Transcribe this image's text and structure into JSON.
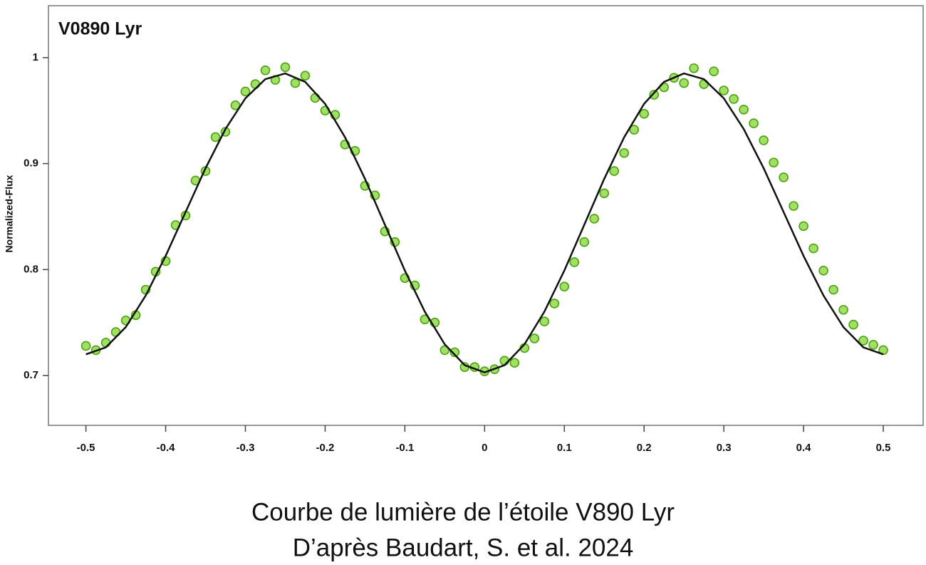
{
  "chart_data": {
    "type": "scatter",
    "title": "V0890 Lyr",
    "y_label": "Normalized-Flux",
    "caption": [
      "Courbe de lumière de l’étoile V890 Lyr",
      "D’après Baudart, S. et al. 2024"
    ],
    "xlim": [
      -0.547,
      0.55
    ],
    "ylim": [
      0.653,
      1.049
    ],
    "xticks": [
      -0.5,
      -0.4,
      -0.3,
      -0.2,
      -0.1,
      0,
      0.1,
      0.2,
      0.3,
      0.4,
      0.5
    ],
    "yticks": [
      0.7,
      0.8,
      0.9,
      1
    ],
    "series": [
      {
        "type": "scatter",
        "color": "#8fdc4a",
        "x": [
          -0.5,
          -0.4875,
          -0.475,
          -0.4625,
          -0.45,
          -0.4375,
          -0.425,
          -0.4125,
          -0.4,
          -0.3875,
          -0.375,
          -0.3625,
          -0.35,
          -0.3375,
          -0.325,
          -0.3125,
          -0.3,
          -0.2875,
          -0.275,
          -0.2625,
          -0.25,
          -0.2375,
          -0.225,
          -0.2125,
          -0.2,
          -0.1875,
          -0.175,
          -0.1625,
          -0.15,
          -0.1375,
          -0.125,
          -0.1125,
          -0.1,
          -0.0875,
          -0.075,
          -0.0625,
          -0.05,
          -0.0375,
          -0.025,
          -0.0125,
          0,
          0.0125,
          0.025,
          0.0375,
          0.05,
          0.0625,
          0.075,
          0.0875,
          0.1,
          0.1125,
          0.125,
          0.1375,
          0.15,
          0.1625,
          0.175,
          0.1875,
          0.2,
          0.2125,
          0.225,
          0.2375,
          0.25,
          0.2625,
          0.275,
          0.2875,
          0.3,
          0.3125,
          0.325,
          0.3375,
          0.35,
          0.3625,
          0.375,
          0.3875,
          0.4,
          0.4125,
          0.425,
          0.4375,
          0.45,
          0.4625,
          0.475,
          0.4875,
          0.5
        ],
        "values": [
          0.728,
          0.724,
          0.731,
          0.741,
          0.752,
          0.757,
          0.781,
          0.798,
          0.808,
          0.842,
          0.851,
          0.884,
          0.893,
          0.925,
          0.93,
          0.955,
          0.968,
          0.975,
          0.988,
          0.979,
          0.991,
          0.976,
          0.983,
          0.962,
          0.95,
          0.946,
          0.918,
          0.912,
          0.879,
          0.87,
          0.836,
          0.826,
          0.792,
          0.785,
          0.753,
          0.75,
          0.724,
          0.722,
          0.708,
          0.708,
          0.704,
          0.706,
          0.714,
          0.712,
          0.726,
          0.735,
          0.751,
          0.768,
          0.784,
          0.807,
          0.826,
          0.848,
          0.872,
          0.893,
          0.91,
          0.932,
          0.947,
          0.965,
          0.972,
          0.981,
          0.976,
          0.99,
          0.975,
          0.987,
          0.969,
          0.961,
          0.951,
          0.938,
          0.922,
          0.901,
          0.887,
          0.86,
          0.841,
          0.82,
          0.799,
          0.781,
          0.762,
          0.748,
          0.733,
          0.729,
          0.724
        ]
      },
      {
        "type": "line",
        "color": "#111111",
        "x": [
          -0.5,
          -0.475,
          -0.45,
          -0.425,
          -0.4,
          -0.375,
          -0.35,
          -0.325,
          -0.3,
          -0.275,
          -0.25,
          -0.225,
          -0.2,
          -0.175,
          -0.15,
          -0.125,
          -0.1,
          -0.075,
          -0.05,
          -0.025,
          0,
          0.025,
          0.05,
          0.075,
          0.1,
          0.125,
          0.15,
          0.175,
          0.2,
          0.225,
          0.25,
          0.275,
          0.3,
          0.325,
          0.35,
          0.375,
          0.4,
          0.425,
          0.45,
          0.475,
          0.5
        ],
        "values": [
          0.72,
          0.7266,
          0.7457,
          0.7755,
          0.8129,
          0.8543,
          0.8956,
          0.9326,
          0.9616,
          0.9797,
          0.9851,
          0.9771,
          0.9564,
          0.9248,
          0.8856,
          0.8423,
          0.7991,
          0.7603,
          0.7295,
          0.7098,
          0.703,
          0.7098,
          0.7295,
          0.7603,
          0.7991,
          0.8423,
          0.8856,
          0.9248,
          0.9564,
          0.9771,
          0.9851,
          0.9797,
          0.9616,
          0.9326,
          0.8956,
          0.8543,
          0.8129,
          0.7755,
          0.7457,
          0.7266,
          0.72
        ]
      }
    ]
  }
}
